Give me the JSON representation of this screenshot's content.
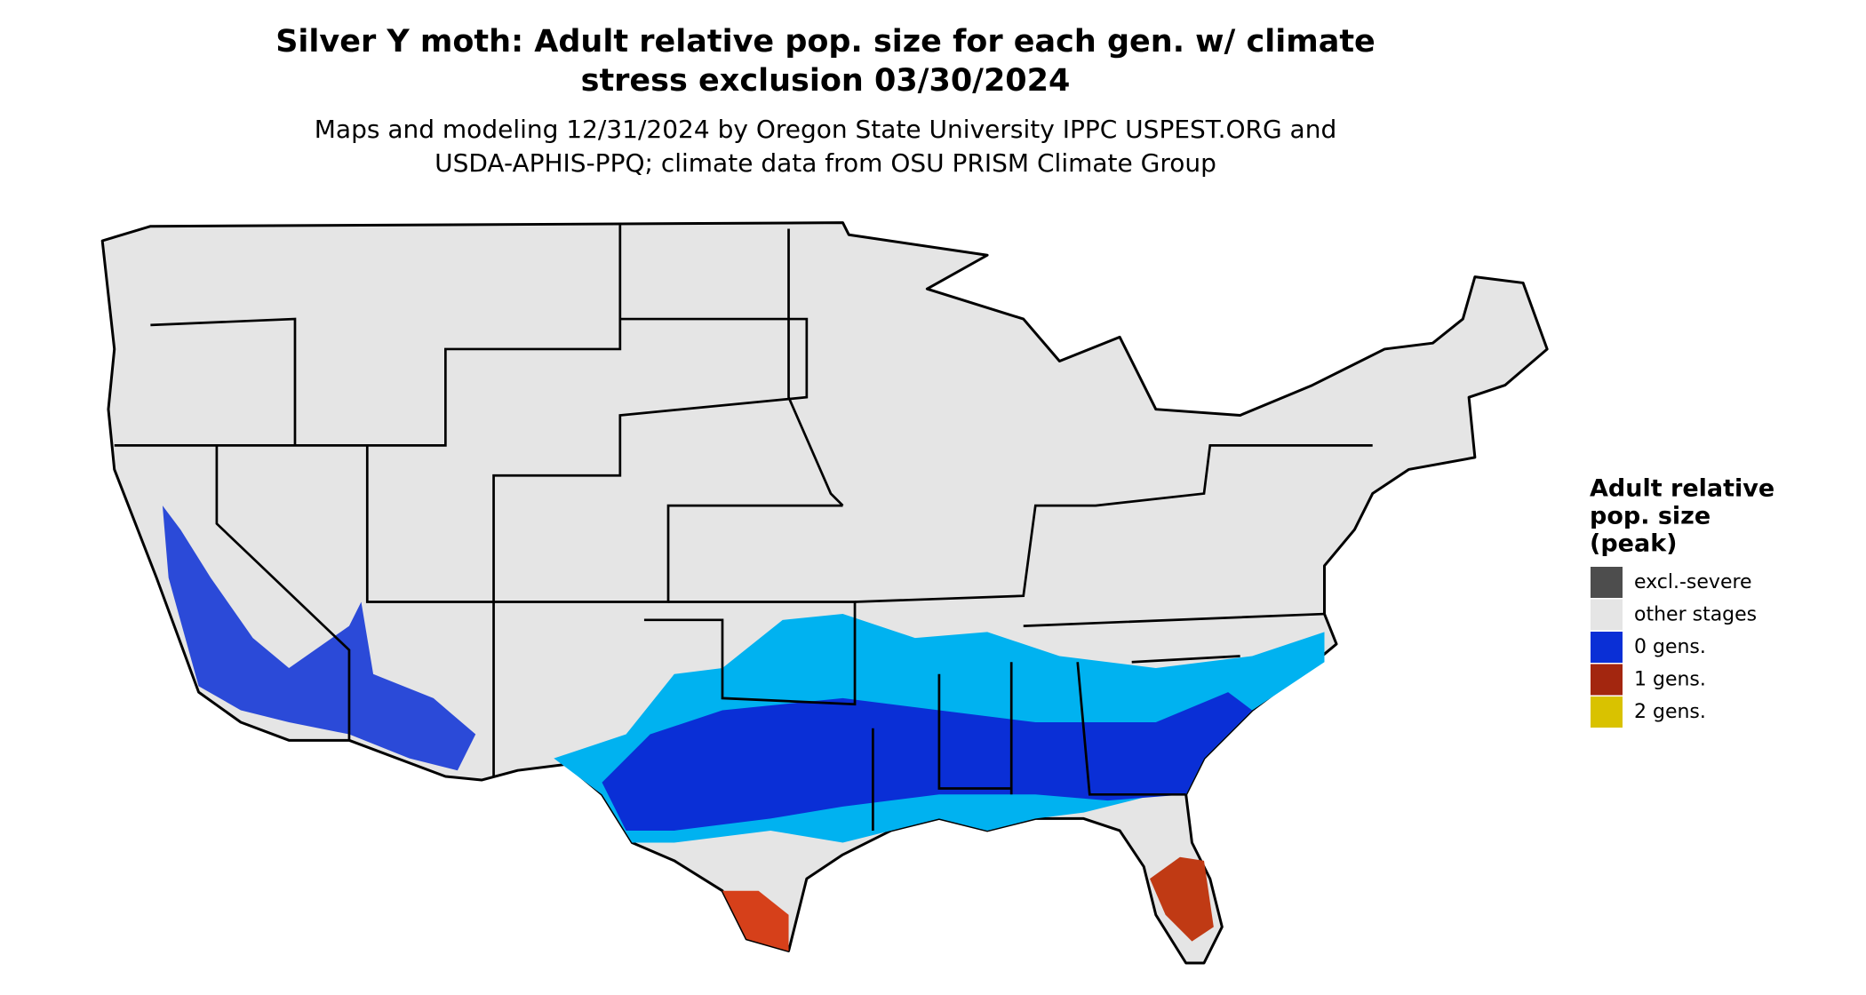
{
  "header": {
    "title_lines": [
      "Silver Y moth: Adult relative pop. size for each gen. w/ climate",
      "stress exclusion 03/30/2024"
    ],
    "subtitle_lines": [
      "Maps and modeling 12/31/2024 by Oregon State University IPPC USPEST.ORG and",
      "USDA-APHIS-PPQ; climate data from OSU PRISM Climate Group"
    ]
  },
  "legend": {
    "title_lines": [
      "Adult relative",
      "pop. size",
      "(peak)"
    ],
    "items": [
      {
        "label": "excl.-severe",
        "color": "#4d4d4d"
      },
      {
        "label": "other stages",
        "color": "#e5e5e5"
      },
      {
        "label": "0 gens.",
        "color": "#0a2fd6"
      },
      {
        "label": "1 gens.",
        "color": "#a3260f"
      },
      {
        "label": "2 gens.",
        "color": "#d9c200"
      }
    ]
  }
}
